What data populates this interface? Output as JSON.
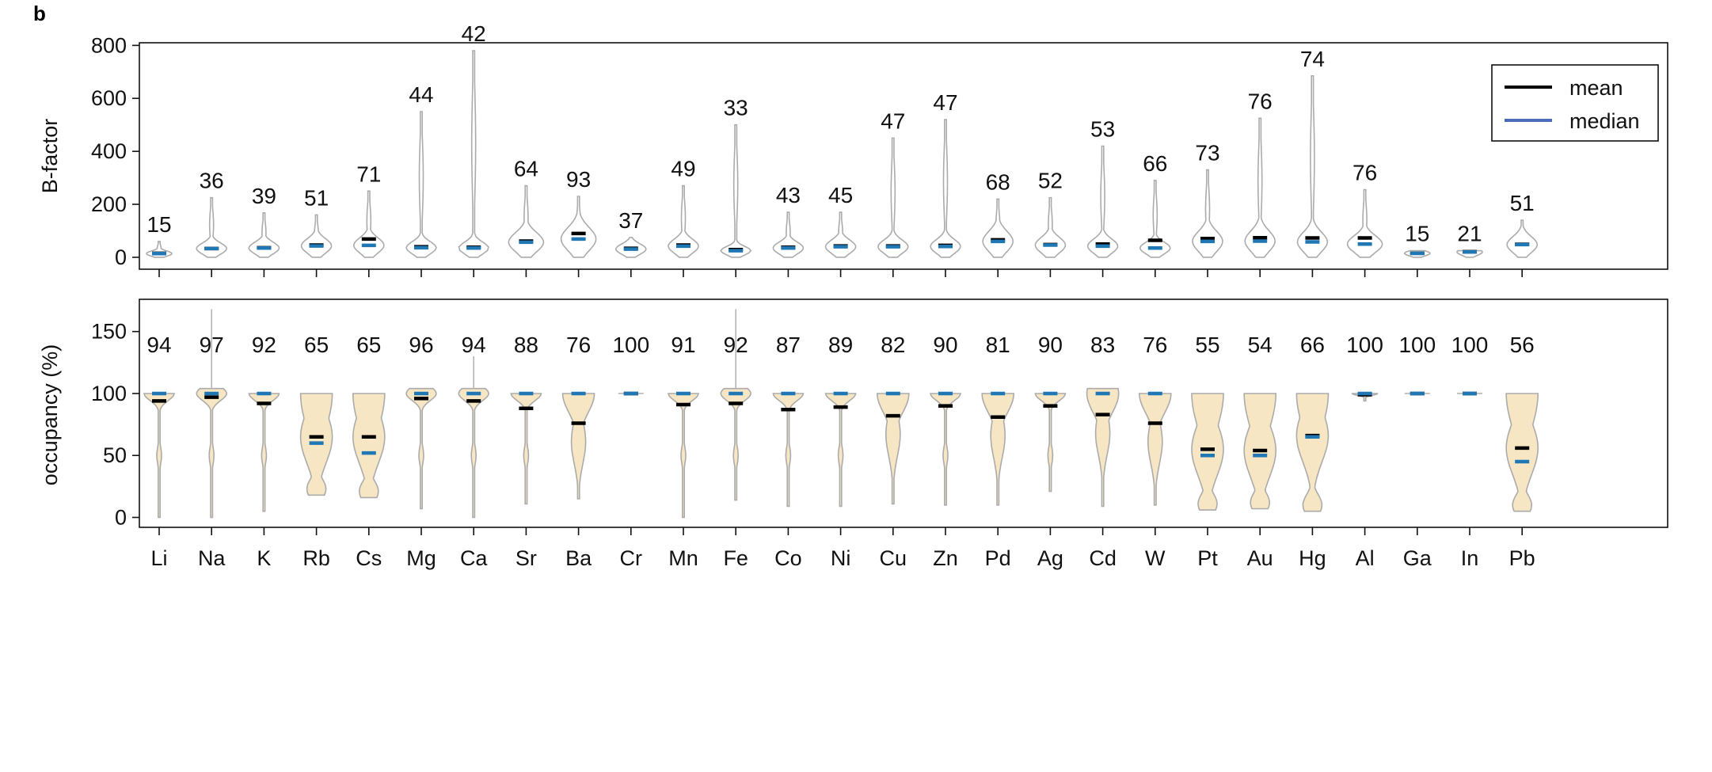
{
  "panel_label": "b",
  "chart_data": [
    {
      "type": "violin",
      "ylabel": "B-factor",
      "xlabel": "",
      "ylim": [
        -45,
        810
      ],
      "yticks": [
        0,
        200,
        400,
        600,
        800
      ],
      "categories": [
        "Li",
        "Na",
        "K",
        "Rb",
        "Cs",
        "Mg",
        "Ca",
        "Sr",
        "Ba",
        "Cr",
        "Mn",
        "Fe",
        "Co",
        "Ni",
        "Cu",
        "Zn",
        "Pd",
        "Ag",
        "Cd",
        "W",
        "Pt",
        "Au",
        "Hg",
        "Al",
        "Ga",
        "In",
        "Pb"
      ],
      "legend": {
        "position": "top-right",
        "entries": [
          {
            "label": "mean",
            "color": "#000000"
          },
          {
            "label": "median",
            "color": "#4c6cb8"
          }
        ]
      },
      "series": [
        {
          "name": "mean",
          "values": [
            15,
            33,
            36,
            46,
            69,
            40,
            38,
            61,
            90,
            34,
            46,
            29,
            38,
            43,
            43,
            45,
            66,
            48,
            50,
            64,
            71,
            74,
            73,
            73,
            15,
            21,
            49
          ]
        },
        {
          "name": "median",
          "values": [
            14,
            33,
            35,
            43,
            45,
            36,
            35,
            57,
            69,
            31,
            42,
            25,
            35,
            40,
            40,
            41,
            60,
            46,
            42,
            35,
            60,
            61,
            58,
            50,
            15,
            20,
            48
          ]
        },
        {
          "name": "max",
          "values": [
            60,
            225,
            168,
            160,
            250,
            550,
            780,
            270,
            230,
            75,
            270,
            500,
            170,
            170,
            450,
            520,
            220,
            225,
            420,
            290,
            330,
            525,
            685,
            255,
            25,
            25,
            140
          ]
        },
        {
          "name": "count_label",
          "values": [
            "15",
            "36",
            "39",
            "51",
            "71",
            "44",
            "42",
            "64",
            "93",
            "37",
            "49",
            "33",
            "43",
            "45",
            "47",
            "47",
            "68",
            "52",
            "53",
            "66",
            "73",
            "76",
            "74",
            "76",
            "15",
            "21",
            "51"
          ]
        }
      ]
    },
    {
      "type": "violin",
      "ylabel": "occupancy (%)",
      "xlabel": "",
      "ylim": [
        -8,
        176
      ],
      "yticks": [
        0,
        50,
        100,
        150
      ],
      "categories": [
        "Li",
        "Na",
        "K",
        "Rb",
        "Cs",
        "Mg",
        "Ca",
        "Sr",
        "Ba",
        "Cr",
        "Mn",
        "Fe",
        "Co",
        "Ni",
        "Cu",
        "Zn",
        "Pd",
        "Ag",
        "Cd",
        "W",
        "Pt",
        "Au",
        "Hg",
        "Al",
        "Ga",
        "In",
        "Pb"
      ],
      "series": [
        {
          "name": "mean",
          "values": [
            94,
            97,
            92,
            65,
            65,
            96,
            94,
            88,
            76,
            100,
            91,
            92,
            87,
            89,
            82,
            90,
            81,
            90,
            83,
            76,
            55,
            54,
            66,
            99,
            100,
            100,
            56
          ]
        },
        {
          "name": "median",
          "values": [
            100,
            100,
            100,
            60,
            52,
            100,
            100,
            100,
            100,
            100,
            100,
            100,
            100,
            100,
            100,
            100,
            100,
            100,
            100,
            100,
            50,
            50,
            65,
            100,
            100,
            100,
            45
          ]
        },
        {
          "name": "min",
          "values": [
            0,
            0,
            5,
            18,
            16,
            7,
            0,
            11,
            15,
            100,
            0,
            14,
            9,
            9,
            11,
            10,
            10,
            21,
            9,
            10,
            6,
            7,
            5,
            94,
            100,
            100,
            5
          ]
        },
        {
          "name": "max",
          "values": [
            100,
            168,
            100,
            100,
            100,
            104,
            130,
            100,
            100,
            100,
            100,
            168,
            100,
            100,
            100,
            100,
            100,
            100,
            104,
            100,
            100,
            100,
            100,
            100,
            100,
            100,
            100
          ]
        },
        {
          "name": "count_label",
          "values": [
            "94",
            "97",
            "92",
            "65",
            "65",
            "96",
            "94",
            "88",
            "76",
            "100",
            "91",
            "92",
            "87",
            "89",
            "82",
            "90",
            "81",
            "90",
            "83",
            "76",
            "55",
            "54",
            "66",
            "100",
            "100",
            "100",
            "56"
          ]
        }
      ]
    }
  ]
}
